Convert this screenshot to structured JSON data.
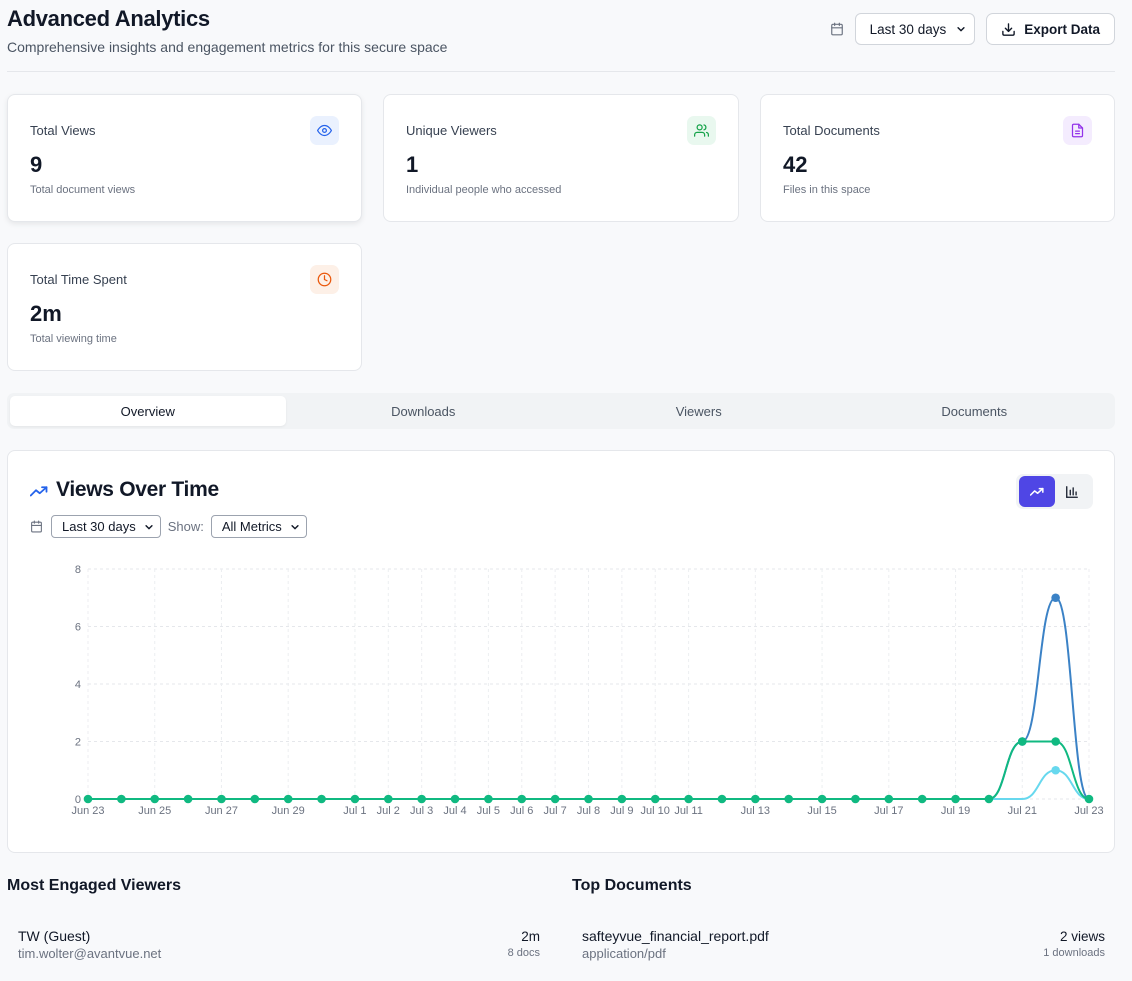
{
  "header": {
    "title": "Advanced Analytics",
    "subtitle": "Comprehensive insights and engagement metrics for this secure space",
    "date_range": "Last 30 days",
    "export_label": "Export Data"
  },
  "stats": [
    {
      "label": "Total Views",
      "value": "9",
      "desc": "Total document views",
      "icon": "eye-icon",
      "color": "#2563eb",
      "bg": "#eaf1fe"
    },
    {
      "label": "Unique Viewers",
      "value": "1",
      "desc": "Individual people who accessed",
      "icon": "users-icon",
      "color": "#16a34a",
      "bg": "#e9f8ef"
    },
    {
      "label": "Total Documents",
      "value": "42",
      "desc": "Files in this space",
      "icon": "file-icon",
      "color": "#9333ea",
      "bg": "#f4ecfe"
    },
    {
      "label": "Total Time Spent",
      "value": "2m",
      "desc": "Total viewing time",
      "icon": "clock-icon",
      "color": "#ea580c",
      "bg": "#fdf0e7"
    }
  ],
  "tabs": [
    "Overview",
    "Downloads",
    "Viewers",
    "Documents"
  ],
  "active_tab": "Overview",
  "chart_section": {
    "title": "Views Over Time",
    "range": "Last 30 days",
    "show_label": "Show:",
    "metric": "All Metrics"
  },
  "chart_data": {
    "type": "line",
    "x": [
      "Jun 23",
      "Jun 24",
      "Jun 25",
      "Jun 26",
      "Jun 27",
      "Jun 28",
      "Jun 29",
      "Jun 30",
      "Jul 1",
      "Jul 2",
      "Jul 3",
      "Jul 4",
      "Jul 5",
      "Jul 6",
      "Jul 7",
      "Jul 8",
      "Jul 9",
      "Jul 10",
      "Jul 11",
      "Jul 12",
      "Jul 13",
      "Jul 14",
      "Jul 15",
      "Jul 16",
      "Jul 17",
      "Jul 18",
      "Jul 19",
      "Jul 20",
      "Jul 21",
      "Jul 22",
      "Jul 23"
    ],
    "x_tick_labels": [
      "Jun 23",
      "Jun 25",
      "Jun 27",
      "Jun 29",
      "Jul 1",
      "Jul 2",
      "Jul 3",
      "Jul 4",
      "Jul 5",
      "Jul 6",
      "Jul 7",
      "Jul 8",
      "Jul 9",
      "Jul 10",
      "Jul 11",
      "Jul 13",
      "Jul 15",
      "Jul 17",
      "Jul 19",
      "Jul 21",
      "Jul 23"
    ],
    "ylim": [
      0,
      8
    ],
    "y_ticks": [
      0,
      2,
      4,
      6,
      8
    ],
    "grid": true,
    "series": [
      {
        "color": "#3b82c6",
        "values": [
          0,
          0,
          0,
          0,
          0,
          0,
          0,
          0,
          0,
          0,
          0,
          0,
          0,
          0,
          0,
          0,
          0,
          0,
          0,
          0,
          0,
          0,
          0,
          0,
          0,
          0,
          0,
          0,
          2,
          7,
          0
        ]
      },
      {
        "color": "#67d8ee",
        "values": [
          0,
          0,
          0,
          0,
          0,
          0,
          0,
          0,
          0,
          0,
          0,
          0,
          0,
          0,
          0,
          0,
          0,
          0,
          0,
          0,
          0,
          0,
          0,
          0,
          0,
          0,
          0,
          0,
          0,
          1,
          0
        ]
      },
      {
        "color": "#10b981",
        "values": [
          0,
          0,
          0,
          0,
          0,
          0,
          0,
          0,
          0,
          0,
          0,
          0,
          0,
          0,
          0,
          0,
          0,
          0,
          0,
          0,
          0,
          0,
          0,
          0,
          0,
          0,
          0,
          0,
          2,
          2,
          0
        ]
      }
    ]
  },
  "viewers": {
    "title": "Most Engaged Viewers",
    "items": [
      {
        "name": "TW (Guest)",
        "email": "tim.wolter@avantvue.net",
        "time": "2m",
        "docs": "8 docs"
      }
    ]
  },
  "documents": {
    "title": "Top Documents",
    "items": [
      {
        "name": "safteyvue_financial_report.pdf",
        "type": "application/pdf",
        "views": "2 views",
        "downloads": "1 downloads"
      }
    ]
  }
}
